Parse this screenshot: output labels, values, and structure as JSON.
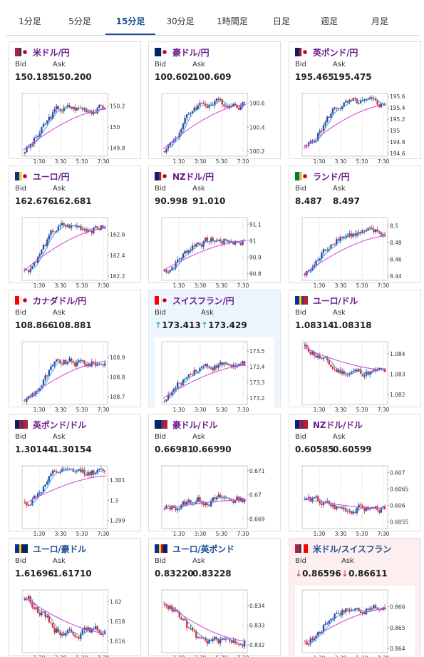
{
  "tabs": [
    {
      "label": "1分足",
      "active": false
    },
    {
      "label": "5分足",
      "active": false
    },
    {
      "label": "15分足",
      "active": true
    },
    {
      "label": "30分足",
      "active": false
    },
    {
      "label": "1時間足",
      "active": false
    },
    {
      "label": "日足",
      "active": false
    },
    {
      "label": "週足",
      "active": false
    },
    {
      "label": "月足",
      "active": false
    }
  ],
  "labels": {
    "bid": "Bid",
    "ask": "Ask"
  },
  "colors": {
    "pair_text": "#6b1f8f",
    "pair_text_alt": "#1a4f8f",
    "tab_active": "#1a4f8f",
    "candle_up": "#2a4fa8",
    "candle_down": "#e0302f",
    "ma_short": "#2aa7e0",
    "ma_long": "#d040d8",
    "price_up": "#17a589",
    "price_down": "#d23a3a"
  },
  "x_ticks": [
    "1:30",
    "3:30",
    "5:30",
    "7:30"
  ],
  "cards": [
    {
      "pair": "米ドル/円",
      "flags": [
        "us-flag-icon",
        "jp-flag-icon"
      ],
      "bid": "150.185",
      "ask": "150.200",
      "trend": "none",
      "chart_data": {
        "type": "candlestick",
        "y_ticks": [
          "150.2",
          "150",
          "149.8"
        ],
        "ylim": [
          149.72,
          150.32
        ],
        "last": 150.18,
        "ma_start": 149.78,
        "ma_end": 150.17
      }
    },
    {
      "pair": "豪ドル/円",
      "flags": [
        "au-flag-icon",
        "jp-flag-icon"
      ],
      "bid": "100.602",
      "ask": "100.609",
      "trend": "none",
      "chart_data": {
        "type": "candlestick",
        "y_ticks": [
          "100.6",
          "100.4",
          "100.2"
        ],
        "ylim": [
          100.16,
          100.68
        ],
        "last": 100.6,
        "ma_start": 100.22,
        "ma_end": 100.59
      }
    },
    {
      "pair": "英ポンド/円",
      "flags": [
        "gb-flag-icon",
        "jp-flag-icon"
      ],
      "bid": "195.465",
      "ask": "195.475",
      "trend": "none",
      "chart_data": {
        "type": "candlestick",
        "y_ticks": [
          "195.6",
          "195.4",
          "195.2",
          "195",
          "194.8",
          "194.6"
        ],
        "ylim": [
          194.55,
          195.65
        ],
        "last": 195.46,
        "ma_start": 194.68,
        "ma_end": 195.45
      }
    },
    {
      "pair": "ユーロ/円",
      "flags": [
        "eu-flag-icon",
        "jp-flag-icon"
      ],
      "bid": "162.676",
      "ask": "162.681",
      "trend": "none",
      "chart_data": {
        "type": "candlestick",
        "y_ticks": [
          "162.6",
          "162.4",
          "162.2"
        ],
        "ylim": [
          162.16,
          162.76
        ],
        "last": 162.67,
        "ma_start": 162.25,
        "ma_end": 162.66
      }
    },
    {
      "pair": "NZドル/円",
      "flags": [
        "nz-flag-icon",
        "jp-flag-icon"
      ],
      "bid": "90.998",
      "ask": "91.010",
      "trend": "none",
      "chart_data": {
        "type": "candlestick",
        "y_ticks": [
          "91.1",
          "91",
          "90.9",
          "90.8"
        ],
        "ylim": [
          90.76,
          91.14
        ],
        "last": 91.0,
        "ma_start": 90.82,
        "ma_end": 91.0
      }
    },
    {
      "pair": "ランド/円",
      "flags": [
        "za-flag-icon",
        "jp-flag-icon"
      ],
      "bid": "8.487",
      "ask": "8.497",
      "trend": "none",
      "chart_data": {
        "type": "candlestick",
        "y_ticks": [
          "8.5",
          "8.48",
          "8.46",
          "8.44"
        ],
        "ylim": [
          8.435,
          8.51
        ],
        "last": 8.49,
        "ma_start": 8.442,
        "ma_end": 8.488
      }
    },
    {
      "pair": "カナダドル/円",
      "flags": [
        "ca-flag-icon",
        "jp-flag-icon"
      ],
      "bid": "108.866",
      "ask": "108.881",
      "trend": "none",
      "chart_data": {
        "type": "candlestick",
        "y_ticks": [
          "108.9",
          "108.8",
          "108.7"
        ],
        "ylim": [
          108.66,
          108.98
        ],
        "last": 108.87,
        "ma_start": 108.68,
        "ma_end": 108.88
      }
    },
    {
      "pair": "スイスフラン/円",
      "flags": [
        "ch-flag-icon",
        "jp-flag-icon"
      ],
      "bid": "173.413",
      "ask": "173.429",
      "trend": "up",
      "chart_data": {
        "type": "candlestick",
        "y_ticks": [
          "173.5",
          "173.4",
          "173.3",
          "173.2"
        ],
        "ylim": [
          173.16,
          173.56
        ],
        "last": 173.41,
        "ma_start": 173.2,
        "ma_end": 173.41
      }
    },
    {
      "pair": "ユーロ/ドル",
      "flags": [
        "eu-flag-icon",
        "us-flag-icon"
      ],
      "bid": "1.08314",
      "ask": "1.08318",
      "trend": "none",
      "chart_data": {
        "type": "candlestick",
        "y_ticks": [
          "1.084",
          "1.083",
          "1.082"
        ],
        "ylim": [
          1.0815,
          1.0846
        ],
        "last": 1.0831,
        "ma_start": 1.0843,
        "ma_end": 1.0832
      }
    },
    {
      "pair": "英ポンド/ドル",
      "flags": [
        "gb-flag-icon",
        "us-flag-icon"
      ],
      "bid": "1.30144",
      "ask": "1.30154",
      "trend": "none",
      "chart_data": {
        "type": "candlestick",
        "y_ticks": [
          "1.301",
          "1.3",
          "1.299"
        ],
        "ylim": [
          1.2986,
          1.3017
        ],
        "last": 1.3014,
        "ma_start": 1.2998,
        "ma_end": 1.3012
      }
    },
    {
      "pair": "豪ドル/ドル",
      "flags": [
        "au-flag-icon",
        "us-flag-icon"
      ],
      "bid": "0.66981",
      "ask": "0.66990",
      "trend": "none",
      "chart_data": {
        "type": "candlestick",
        "y_ticks": [
          "0.671",
          "0.67",
          "0.669"
        ],
        "ylim": [
          0.6686,
          0.6712
        ],
        "last": 0.6698,
        "ma_start": 0.6694,
        "ma_end": 0.6698
      }
    },
    {
      "pair": "NZドル/ドル",
      "flags": [
        "nz-flag-icon",
        "us-flag-icon"
      ],
      "bid": "0.60585",
      "ask": "0.60599",
      "trend": "none",
      "chart_data": {
        "type": "candlestick",
        "y_ticks": [
          "0.607",
          "0.6065",
          "0.606",
          "0.6055"
        ],
        "ylim": [
          0.6053,
          0.6072
        ],
        "last": 0.6059,
        "ma_start": 0.6062,
        "ma_end": 0.6059
      }
    },
    {
      "pair": "ユーロ/豪ドル",
      "flags": [
        "eu-flag-icon",
        "au-flag-icon"
      ],
      "bid": "1.61696",
      "ask": "1.61710",
      "trend": "none",
      "chart_data": {
        "type": "candlestick",
        "y_ticks": [
          "1.62",
          "1.618",
          "1.616"
        ],
        "ylim": [
          1.6148,
          1.6212
        ],
        "last": 1.617,
        "ma_start": 1.6205,
        "ma_end": 1.6168
      }
    },
    {
      "pair": "ユーロ/英ポンド",
      "flags": [
        "eu-flag-icon",
        "gb-flag-icon"
      ],
      "bid": "0.83220",
      "ask": "0.83228",
      "trend": "none",
      "chart_data": {
        "type": "candlestick",
        "y_ticks": [
          "0.834",
          "0.833",
          "0.832"
        ],
        "ylim": [
          0.8316,
          0.8348
        ],
        "last": 0.8322,
        "ma_start": 0.8342,
        "ma_end": 0.8322
      }
    },
    {
      "pair": "米ドル/スイスフラン",
      "flags": [
        "us-flag-icon",
        "ch-flag-icon"
      ],
      "bid": "0.86596",
      "ask": "0.86611",
      "trend": "down",
      "chart_data": {
        "type": "candlestick",
        "y_ticks": [
          "0.866",
          "0.865",
          "0.864"
        ],
        "ylim": [
          0.8638,
          0.8668
        ],
        "last": 0.8659,
        "ma_start": 0.8642,
        "ma_end": 0.8659
      }
    }
  ]
}
